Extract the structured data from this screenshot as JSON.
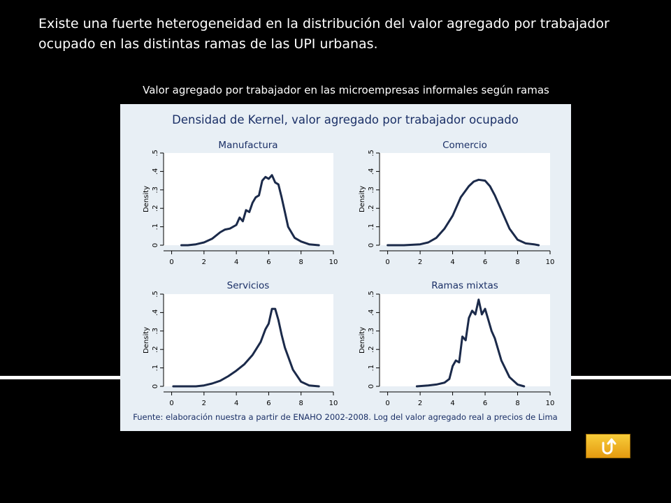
{
  "slide": {
    "heading_line1": "Existe una fuerte heterogeneidad en la distribución del valor agregado por trabajador",
    "heading_line2": "ocupado en las distintas ramas de las UPI urbanas.",
    "subtitle": "Valor agregado por trabajador en las microempresas informales según ramas",
    "back_button_icon": "return-arrow-icon",
    "back_button_color": "#f2b31f"
  },
  "chart_data": {
    "type": "line",
    "title": "Densidad de Kernel, valor agregado por trabajador ocupado",
    "note": "Fuente: elaboración nuestra a partir de ENAHO 2002-2008. Log del valor agregado real a precios de Lima",
    "ylabel": "Density",
    "xlim": [
      -0.5,
      10
    ],
    "ylim": [
      0,
      0.5
    ],
    "x_ticks": [
      "0",
      "2",
      "4",
      "6",
      "8",
      "10"
    ],
    "y_ticks": [
      "0",
      ".1",
      ".2",
      ".3",
      ".4",
      ".5"
    ],
    "line_color": "#1b2a4a",
    "panel_background": "#ffffff",
    "figure_background": "#e8eff5",
    "title_color": "#1a2f66",
    "panels": [
      {
        "name": "Manufactura",
        "x": [
          0.6,
          1.0,
          1.5,
          2.0,
          2.5,
          3.0,
          3.3,
          3.6,
          4.0,
          4.2,
          4.4,
          4.6,
          4.8,
          5.0,
          5.2,
          5.4,
          5.6,
          5.8,
          6.0,
          6.2,
          6.4,
          6.6,
          6.8,
          7.0,
          7.2,
          7.6,
          8.0,
          8.5,
          9.1
        ],
        "y": [
          0.0,
          0.0,
          0.005,
          0.015,
          0.035,
          0.07,
          0.085,
          0.09,
          0.11,
          0.15,
          0.13,
          0.19,
          0.18,
          0.23,
          0.26,
          0.27,
          0.35,
          0.37,
          0.36,
          0.38,
          0.34,
          0.33,
          0.26,
          0.18,
          0.1,
          0.04,
          0.02,
          0.005,
          0.0
        ]
      },
      {
        "name": "Comercio",
        "x": [
          0.0,
          1.0,
          2.0,
          2.5,
          3.0,
          3.5,
          4.0,
          4.5,
          5.0,
          5.3,
          5.6,
          6.0,
          6.3,
          6.6,
          7.0,
          7.5,
          8.0,
          8.5,
          9.0,
          9.3
        ],
        "y": [
          0.0,
          0.0,
          0.005,
          0.015,
          0.04,
          0.09,
          0.16,
          0.26,
          0.32,
          0.345,
          0.355,
          0.35,
          0.32,
          0.27,
          0.19,
          0.09,
          0.03,
          0.01,
          0.005,
          0.0
        ]
      },
      {
        "name": "Servicios",
        "x": [
          0.1,
          1.0,
          1.5,
          2.0,
          2.5,
          3.0,
          3.5,
          4.0,
          4.5,
          5.0,
          5.5,
          5.8,
          6.0,
          6.2,
          6.4,
          6.6,
          6.8,
          7.0,
          7.5,
          8.0,
          8.5,
          9.1
        ],
        "y": [
          0.0,
          0.0,
          0.0,
          0.005,
          0.015,
          0.03,
          0.055,
          0.085,
          0.12,
          0.17,
          0.24,
          0.31,
          0.34,
          0.42,
          0.42,
          0.36,
          0.28,
          0.21,
          0.09,
          0.025,
          0.005,
          0.0
        ]
      },
      {
        "name": "Ramas mixtas",
        "x": [
          1.8,
          2.5,
          3.0,
          3.5,
          3.8,
          4.0,
          4.2,
          4.4,
          4.6,
          4.8,
          5.0,
          5.2,
          5.4,
          5.6,
          5.8,
          6.0,
          6.2,
          6.4,
          6.6,
          7.0,
          7.5,
          8.0,
          8.4
        ],
        "y": [
          0.0,
          0.005,
          0.01,
          0.02,
          0.04,
          0.11,
          0.14,
          0.13,
          0.27,
          0.25,
          0.37,
          0.41,
          0.39,
          0.47,
          0.39,
          0.42,
          0.36,
          0.3,
          0.26,
          0.14,
          0.05,
          0.01,
          0.0
        ]
      }
    ]
  }
}
